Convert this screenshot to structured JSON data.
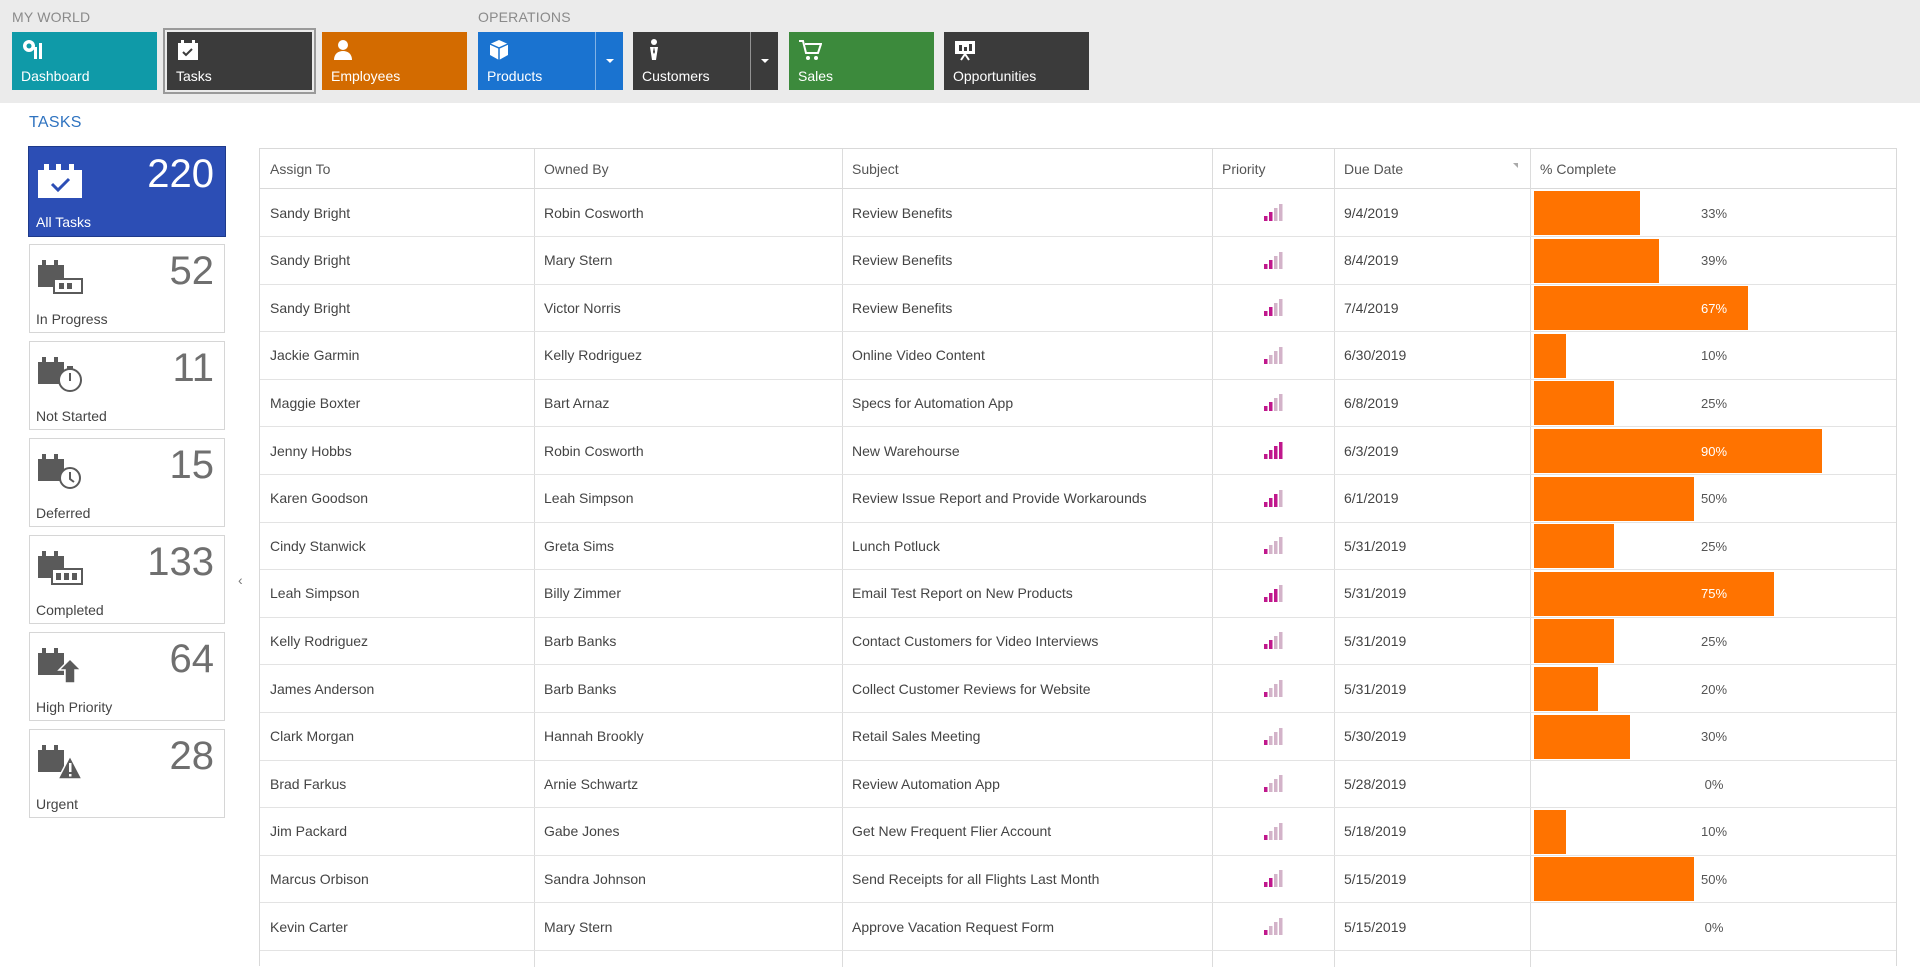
{
  "nav": {
    "my_world_label": "MY WORLD",
    "operations_label": "OPERATIONS",
    "tiles": [
      {
        "label": "Dashboard",
        "icon": "dashboard-icon",
        "color": "#0f9aa8"
      },
      {
        "label": "Tasks",
        "icon": "tasks-icon",
        "color": "#3b3b3b",
        "selected": true
      },
      {
        "label": "Employees",
        "icon": "employee-icon",
        "color": "#d36b00"
      },
      {
        "label": "Products",
        "icon": "box-icon",
        "color": "#1a73d0",
        "dropdown": true
      },
      {
        "label": "Customers",
        "icon": "customer-icon",
        "color": "#3b3b3b",
        "dropdown": true
      },
      {
        "label": "Sales",
        "icon": "cart-icon",
        "color": "#3c8a3c"
      },
      {
        "label": "Opportunities",
        "icon": "presentation-icon",
        "color": "#3b3b3b"
      }
    ]
  },
  "sidebar": {
    "title": "TASKS",
    "cards": [
      {
        "label": "All Tasks",
        "count": "220",
        "icon": "all-tasks-icon",
        "active": true
      },
      {
        "label": "In Progress",
        "count": "52",
        "icon": "in-progress-icon"
      },
      {
        "label": "Not Started",
        "count": "11",
        "icon": "not-started-icon"
      },
      {
        "label": "Deferred",
        "count": "15",
        "icon": "deferred-icon"
      },
      {
        "label": "Completed",
        "count": "133",
        "icon": "completed-icon"
      },
      {
        "label": "High Priority",
        "count": "64",
        "icon": "high-priority-icon"
      },
      {
        "label": "Urgent",
        "count": "28",
        "icon": "urgent-icon"
      }
    ],
    "collapse_glyph": "‹"
  },
  "grid": {
    "columns": [
      "Assign To",
      "Owned By",
      "Subject",
      "Priority",
      "Due Date",
      "% Complete"
    ],
    "rows": [
      {
        "assign": "Sandy Bright",
        "owner": "Robin Cosworth",
        "subject": "Review Benefits",
        "priority": 2,
        "due": "9/4/2019",
        "pct": 33,
        "pct_label": "33%"
      },
      {
        "assign": "Sandy Bright",
        "owner": "Mary Stern",
        "subject": "Review Benefits",
        "priority": 2,
        "due": "8/4/2019",
        "pct": 39,
        "pct_label": "39%"
      },
      {
        "assign": "Sandy Bright",
        "owner": "Victor Norris",
        "subject": "Review Benefits",
        "priority": 2,
        "due": "7/4/2019",
        "pct": 67,
        "pct_label": "67%"
      },
      {
        "assign": "Jackie Garmin",
        "owner": "Kelly Rodriguez",
        "subject": "Online Video Content",
        "priority": 1,
        "due": "6/30/2019",
        "pct": 10,
        "pct_label": "10%"
      },
      {
        "assign": "Maggie Boxter",
        "owner": "Bart Arnaz",
        "subject": "Specs for Automation App",
        "priority": 2,
        "due": "6/8/2019",
        "pct": 25,
        "pct_label": "25%"
      },
      {
        "assign": "Jenny Hobbs",
        "owner": "Robin Cosworth",
        "subject": "New Warehourse",
        "priority": 4,
        "due": "6/3/2019",
        "pct": 90,
        "pct_label": "90%"
      },
      {
        "assign": "Karen Goodson",
        "owner": "Leah Simpson",
        "subject": "Review Issue Report and Provide Workarounds",
        "priority": 3,
        "due": "6/1/2019",
        "pct": 50,
        "pct_label": "50%"
      },
      {
        "assign": "Cindy Stanwick",
        "owner": "Greta Sims",
        "subject": "Lunch Potluck",
        "priority": 1,
        "due": "5/31/2019",
        "pct": 25,
        "pct_label": "25%"
      },
      {
        "assign": "Leah Simpson",
        "owner": "Billy Zimmer",
        "subject": "Email Test Report on New Products",
        "priority": 3,
        "due": "5/31/2019",
        "pct": 75,
        "pct_label": "75%"
      },
      {
        "assign": "Kelly Rodriguez",
        "owner": "Barb Banks",
        "subject": "Contact Customers for Video Interviews",
        "priority": 2,
        "due": "5/31/2019",
        "pct": 25,
        "pct_label": "25%"
      },
      {
        "assign": "James Anderson",
        "owner": "Barb Banks",
        "subject": "Collect Customer Reviews for Website",
        "priority": 1,
        "due": "5/31/2019",
        "pct": 20,
        "pct_label": "20%"
      },
      {
        "assign": "Clark Morgan",
        "owner": "Hannah Brookly",
        "subject": "Retail Sales Meeting",
        "priority": 1,
        "due": "5/30/2019",
        "pct": 30,
        "pct_label": "30%"
      },
      {
        "assign": "Brad Farkus",
        "owner": "Arnie Schwartz",
        "subject": "Review Automation App",
        "priority": 1,
        "due": "5/28/2019",
        "pct": 0,
        "pct_label": "0%"
      },
      {
        "assign": "Jim Packard",
        "owner": "Gabe Jones",
        "subject": "Get New Frequent Flier Account",
        "priority": 1,
        "due": "5/18/2019",
        "pct": 10,
        "pct_label": "10%"
      },
      {
        "assign": "Marcus Orbison",
        "owner": "Sandra Johnson",
        "subject": "Send Receipts for all Flights Last Month",
        "priority": 2,
        "due": "5/15/2019",
        "pct": 50,
        "pct_label": "50%"
      },
      {
        "assign": "Kevin Carter",
        "owner": "Mary Stern",
        "subject": "Approve Vacation Request Form",
        "priority": 1,
        "due": "5/15/2019",
        "pct": 0,
        "pct_label": "0%"
      }
    ]
  },
  "colors": {
    "progress": "#ff7300",
    "priority_on": "#c0178c",
    "priority_off": "#d3b3c9",
    "accent": "#2c4eb5"
  }
}
